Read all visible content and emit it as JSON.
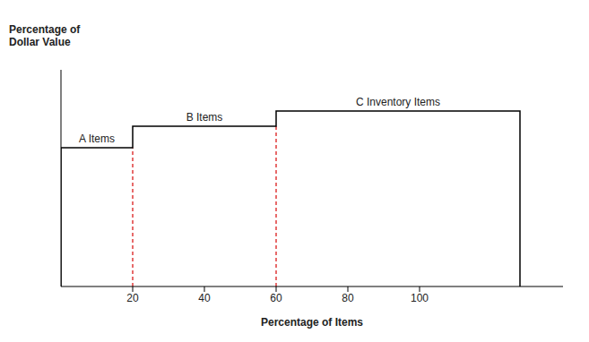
{
  "chart_data": {
    "type": "step",
    "y_label": "Percentage of Dollar Value",
    "x_label": "Percentage of Items",
    "categories": [
      "A Items",
      "B Items",
      "C Inventory Items"
    ],
    "bins": [
      0,
      20,
      60,
      128
    ],
    "values": [
      64,
      74,
      81
    ],
    "xlim": [
      0,
      140
    ],
    "xticks": [
      20,
      40,
      60,
      80,
      100
    ],
    "ylim": [
      0,
      100
    ],
    "tick_labels": "x",
    "color": "#000000"
  }
}
